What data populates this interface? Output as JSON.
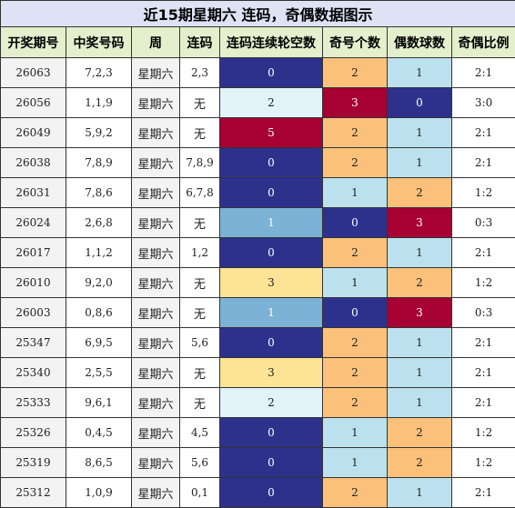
{
  "title": "近15期星期六 连码，奇偶数据图示",
  "columns": [
    "开奖期号",
    "中奖号码",
    "周",
    "连码",
    "连码连续轮空数",
    "奇号个数",
    "偶数球数",
    "奇偶比例"
  ],
  "colors": {
    "gap_0": "#2e318c",
    "gap_1": "#7cb2d5",
    "gap_2": "#e1f2f8",
    "gap_3": "#fde396",
    "gap_5": "#a70032",
    "odd_0": "#2e318c",
    "odd_1": "#bce1ee",
    "odd_2": "#fbc17b",
    "odd_3": "#a70032",
    "even_0": "#2e318c",
    "even_1": "#bce1ee",
    "even_2": "#fbc17b",
    "even_3": "#a70032"
  },
  "rows": [
    {
      "period": "26063",
      "numbers": "7,2,3",
      "weekday": "星期六",
      "consec": "2,3",
      "gap": "0",
      "odd": "2",
      "even": "1",
      "ratio": "2:1"
    },
    {
      "period": "26056",
      "numbers": "1,1,9",
      "weekday": "星期六",
      "consec": "无",
      "gap": "2",
      "odd": "3",
      "even": "0",
      "ratio": "3:0"
    },
    {
      "period": "26049",
      "numbers": "5,9,2",
      "weekday": "星期六",
      "consec": "无",
      "gap": "5",
      "odd": "2",
      "even": "1",
      "ratio": "2:1"
    },
    {
      "period": "26038",
      "numbers": "7,8,9",
      "weekday": "星期六",
      "consec": "7,8,9",
      "gap": "0",
      "odd": "2",
      "even": "1",
      "ratio": "2:1"
    },
    {
      "period": "26031",
      "numbers": "7,8,6",
      "weekday": "星期六",
      "consec": "6,7,8",
      "gap": "0",
      "odd": "1",
      "even": "2",
      "ratio": "1:2"
    },
    {
      "period": "26024",
      "numbers": "2,6,8",
      "weekday": "星期六",
      "consec": "无",
      "gap": "1",
      "odd": "0",
      "even": "3",
      "ratio": "0:3"
    },
    {
      "period": "26017",
      "numbers": "1,1,2",
      "weekday": "星期六",
      "consec": "1,2",
      "gap": "0",
      "odd": "2",
      "even": "1",
      "ratio": "2:1"
    },
    {
      "period": "26010",
      "numbers": "9,2,0",
      "weekday": "星期六",
      "consec": "无",
      "gap": "3",
      "odd": "1",
      "even": "2",
      "ratio": "1:2"
    },
    {
      "period": "26003",
      "numbers": "0,8,6",
      "weekday": "星期六",
      "consec": "无",
      "gap": "1",
      "odd": "0",
      "even": "3",
      "ratio": "0:3"
    },
    {
      "period": "25347",
      "numbers": "6,9,5",
      "weekday": "星期六",
      "consec": "5,6",
      "gap": "0",
      "odd": "2",
      "even": "1",
      "ratio": "2:1"
    },
    {
      "period": "25340",
      "numbers": "2,5,5",
      "weekday": "星期六",
      "consec": "无",
      "gap": "3",
      "odd": "2",
      "even": "1",
      "ratio": "2:1"
    },
    {
      "period": "25333",
      "numbers": "9,6,1",
      "weekday": "星期六",
      "consec": "无",
      "gap": "2",
      "odd": "2",
      "even": "1",
      "ratio": "2:1"
    },
    {
      "period": "25326",
      "numbers": "0,4,5",
      "weekday": "星期六",
      "consec": "4,5",
      "gap": "0",
      "odd": "1",
      "even": "2",
      "ratio": "1:2"
    },
    {
      "period": "25319",
      "numbers": "8,6,5",
      "weekday": "星期六",
      "consec": "5,6",
      "gap": "0",
      "odd": "1",
      "even": "2",
      "ratio": "1:2"
    },
    {
      "period": "25312",
      "numbers": "1,0,9",
      "weekday": "星期六",
      "consec": "0,1",
      "gap": "0",
      "odd": "2",
      "even": "1",
      "ratio": "2:1"
    }
  ]
}
